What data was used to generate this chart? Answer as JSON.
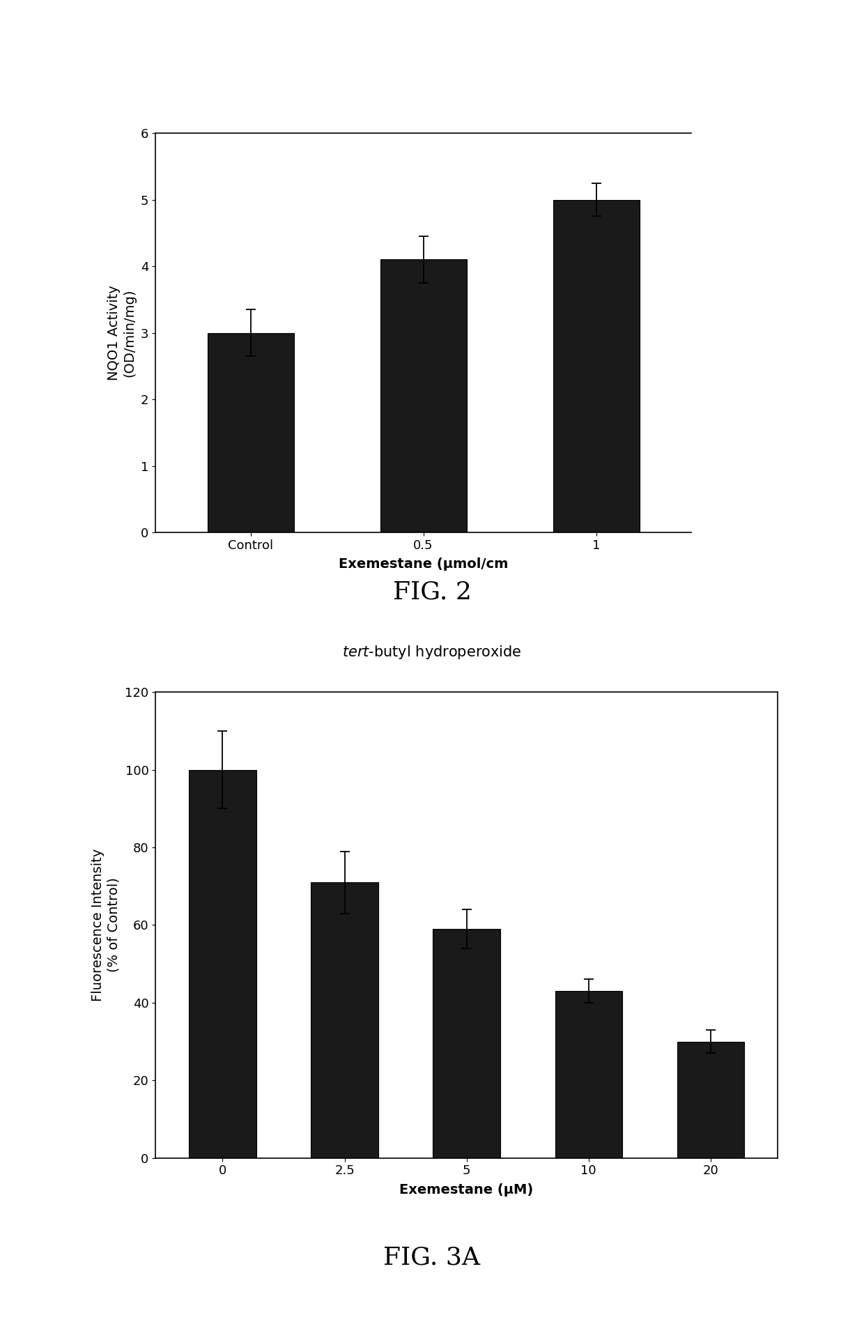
{
  "fig2": {
    "categories": [
      "Control",
      "0.5",
      "1"
    ],
    "values": [
      3.0,
      4.1,
      5.0
    ],
    "errors": [
      0.35,
      0.35,
      0.25
    ],
    "bar_color": "#1a1a1a",
    "bar_width": 0.5,
    "ylim": [
      0,
      6
    ],
    "yticks": [
      0,
      1,
      2,
      3,
      4,
      5,
      6
    ],
    "ylabel": "NQO1 Activity\n(OD/min/mg)",
    "xlabel": "Exemestane (μmol/cm",
    "fig_label": "FIG. 2",
    "ylabel_fontsize": 14,
    "xlabel_fontsize": 14,
    "tick_fontsize": 13,
    "fig_label_fontsize": 26
  },
  "fig3a": {
    "categories": [
      "0",
      "2.5",
      "5",
      "10",
      "20"
    ],
    "values": [
      100,
      71,
      59,
      43,
      30
    ],
    "errors": [
      10,
      8,
      5,
      3,
      3
    ],
    "bar_color": "#1a1a1a",
    "bar_width": 0.55,
    "ylim": [
      0,
      120
    ],
    "yticks": [
      0,
      20,
      40,
      60,
      80,
      100,
      120
    ],
    "ylabel": "Fluorescence Intensity\n(% of Control)",
    "xlabel": "Exemestane (μM)",
    "chart_title_italic": "tert",
    "chart_title_normal": "-butyl hydroperoxide",
    "fig_label": "FIG. 3A",
    "ylabel_fontsize": 14,
    "xlabel_fontsize": 14,
    "tick_fontsize": 13,
    "fig_label_fontsize": 26
  },
  "background_color": "#ffffff",
  "bar_edge_color": "#000000"
}
